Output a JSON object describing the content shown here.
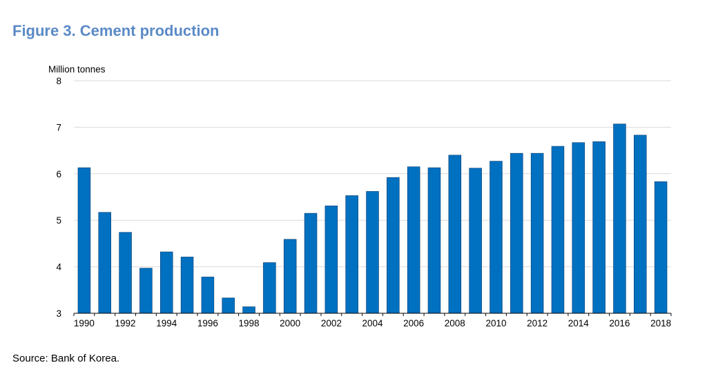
{
  "title": "Figure 3. Cement production",
  "source": "Source: Bank of Korea.",
  "colors": {
    "bar": "#0070c0",
    "title": "#5b8ac6",
    "grid": "#d9d9d9"
  },
  "chart_data": {
    "type": "bar",
    "title": "Figure 3. Cement production",
    "ylabel": "Million tonnes",
    "xlabel": "",
    "ylim": [
      3,
      8
    ],
    "yticks": [
      3,
      4,
      5,
      6,
      7,
      8
    ],
    "grid": true,
    "legend": "none",
    "categories": [
      "1990",
      "1991",
      "1992",
      "1993",
      "1994",
      "1995",
      "1996",
      "1997",
      "1998",
      "1999",
      "2000",
      "2001",
      "2002",
      "2003",
      "2004",
      "2005",
      "2006",
      "2007",
      "2008",
      "2009",
      "2010",
      "2011",
      "2012",
      "2013",
      "2014",
      "2015",
      "2016",
      "2017",
      "2018"
    ],
    "xtick_labels": [
      "1990",
      "1992",
      "1994",
      "1996",
      "1998",
      "2000",
      "2002",
      "2004",
      "2006",
      "2008",
      "2010",
      "2012",
      "2014",
      "2016",
      "2018"
    ],
    "values": [
      6.13,
      5.17,
      4.74,
      3.97,
      4.32,
      4.21,
      3.78,
      3.33,
      3.14,
      4.09,
      4.59,
      5.15,
      5.31,
      5.53,
      5.62,
      5.92,
      6.15,
      6.13,
      6.4,
      6.12,
      6.27,
      6.44,
      6.44,
      6.59,
      6.67,
      6.69,
      7.07,
      6.83,
      5.83
    ]
  }
}
